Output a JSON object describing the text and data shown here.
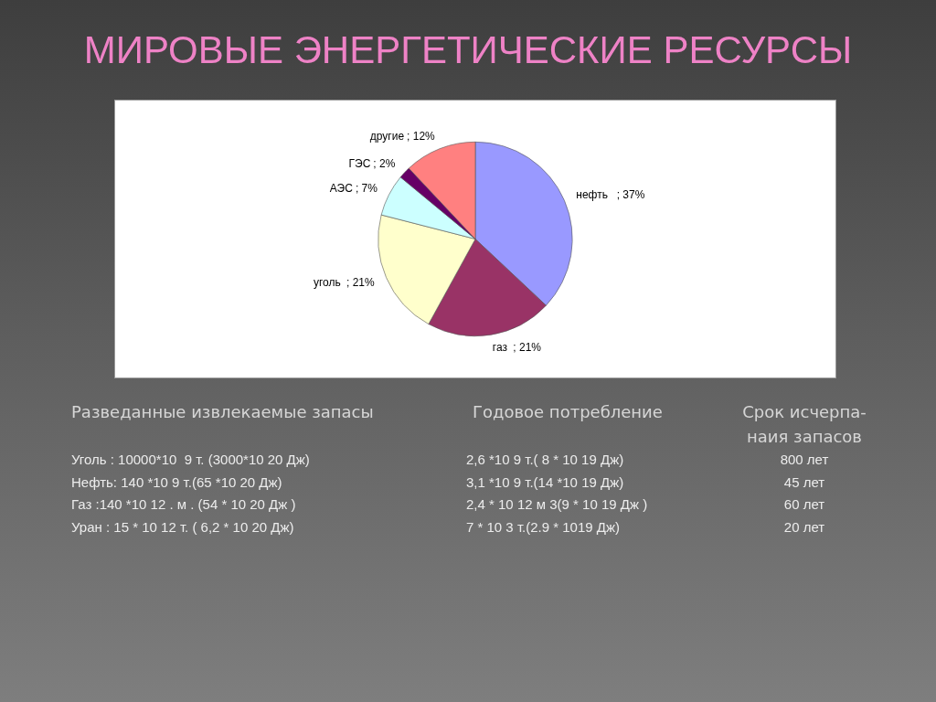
{
  "chart_data": {
    "type": "pie",
    "title": "МИРОВЫЕ ЭНЕРГЕТИЧЕСКИЕ РЕСУРСЫ",
    "categories": [
      "нефть",
      "газ",
      "уголь",
      "АЭС",
      "ГЭС",
      "другие"
    ],
    "values": [
      37,
      21,
      21,
      7,
      2,
      12
    ],
    "colors": [
      "#9999ff",
      "#993366",
      "#ffffcc",
      "#ccffff",
      "#660066",
      "#ff8080"
    ],
    "value_labels": [
      "  ; 37%",
      " ; 21%",
      " ; 21%",
      "; 7%",
      "; 2%",
      "; 12%"
    ],
    "annotations": [
      "Разведанные извлекаемые запасы",
      "Годовое потребление",
      "Срок исчерпа-\nнаия запасов",
      "Уголь : 10000*10  9 т. (3000*10 20 Дж)",
      "2,6 *10 9 т.( 8 * 10 19 Дж)",
      "800 лет",
      "Нефть: 140 *10 9 т.(65 *10 20 Дж)",
      "3,1 *10 9 т.(14 *10 19 Дж)",
      "45 лет",
      "Газ :140 *10 12 . м . (54 * 10 20 Дж )",
      "2,4 * 10 12 м 3(9 * 10 19 Дж )",
      "60 лет",
      "Уран : 15 * 10 12 т. ( 6,2 * 10 20 Дж)",
      "7 * 10 3 т.(2.9 * 1019 Дж)",
      "20 лет"
    ]
  }
}
